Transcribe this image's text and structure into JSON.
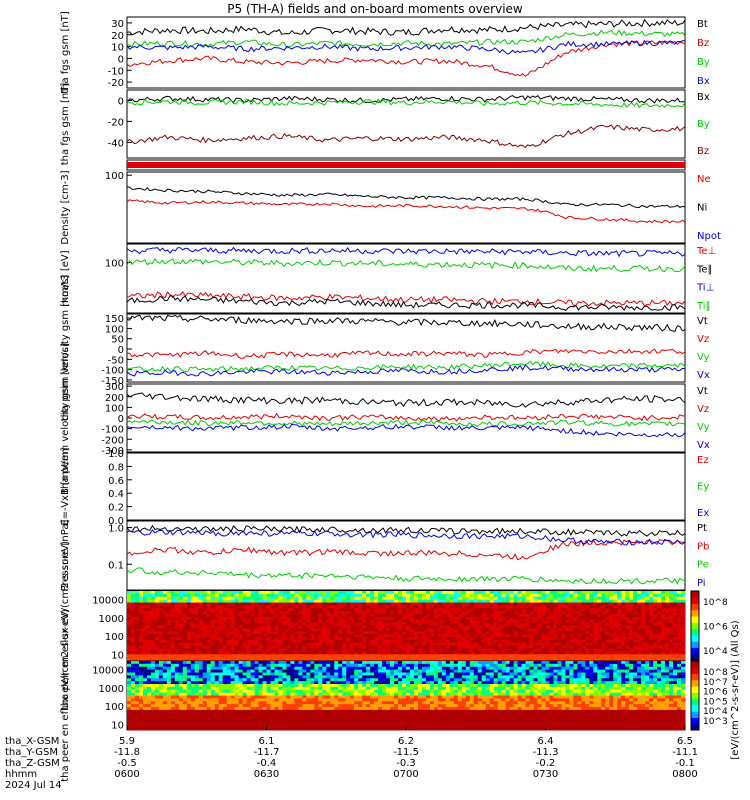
{
  "title": "P5 (TH-A) fields and on-board moments overview",
  "colors": {
    "black": "#000000",
    "red": "#e00000",
    "green": "#00cc00",
    "blue": "#0000e0",
    "darkred": "#800000"
  },
  "footer": {
    "row_labels": [
      "tha_X-GSM",
      "tha_Y-GSM",
      "tha_Z-GSM",
      "hhmm",
      "2024 Jul 14"
    ],
    "columns": [
      {
        "x": "5.9",
        "y": "-11.8",
        "z": "-0.5",
        "hhmm": "0600"
      },
      {
        "x": "6.1",
        "y": "-11.7",
        "z": "-0.4",
        "hhmm": "0630"
      },
      {
        "x": "6.2",
        "y": "-11.5",
        "z": "-0.3",
        "hhmm": "0700"
      },
      {
        "x": "6.4",
        "y": "-11.3",
        "z": "-0.2",
        "hhmm": "0730"
      },
      {
        "x": "6.5",
        "y": "-11.1",
        "z": "-0.1",
        "hhmm": "0800"
      }
    ]
  },
  "chart_data": [
    {
      "type": "line",
      "ylabel": "tha fgs gsm [nT]",
      "ylim": [
        -25,
        35
      ],
      "log": false,
      "ticks": [
        "30",
        "20",
        "10",
        "0",
        "-10",
        "-20"
      ],
      "series": [
        {
          "name": "Bt",
          "color": "#000000",
          "values": [
            22,
            24,
            23,
            25,
            21,
            24,
            23,
            22,
            25,
            24,
            26,
            28,
            29,
            30,
            30
          ]
        },
        {
          "name": "Bz",
          "color": "#e00000",
          "values": [
            -5,
            -2,
            0,
            -3,
            -4,
            -2,
            -1,
            -3,
            -2,
            -6,
            -15,
            5,
            12,
            13,
            14
          ]
        },
        {
          "name": "By",
          "color": "#00cc00",
          "values": [
            12,
            13,
            12,
            14,
            11,
            13,
            12,
            13,
            12,
            14,
            14,
            20,
            22,
            21,
            20
          ]
        },
        {
          "name": "Bx",
          "color": "#0000e0",
          "values": [
            10,
            9,
            10,
            8,
            9,
            10,
            8,
            9,
            10,
            8,
            4,
            12,
            12,
            13,
            13
          ]
        }
      ]
    },
    {
      "type": "line",
      "ylabel": "tha fgs gsm [nT]",
      "ylim": [
        -55,
        10
      ],
      "log": false,
      "ticks": [
        "0",
        "-20",
        "-40"
      ],
      "series": [
        {
          "name": "Bx",
          "color": "#000000",
          "values": [
            0,
            2,
            1,
            0,
            2,
            1,
            0,
            1,
            2,
            1,
            3,
            2,
            1,
            0,
            0
          ]
        },
        {
          "name": "By",
          "color": "#00cc00",
          "values": [
            -2,
            -1,
            -2,
            -1,
            -3,
            -2,
            -1,
            -2,
            -1,
            -3,
            -2,
            -3,
            -4,
            -5,
            -4
          ]
        },
        {
          "name": "Bz",
          "color": "#800000",
          "values": [
            -40,
            -35,
            -38,
            -36,
            -34,
            -38,
            -36,
            -37,
            -35,
            -38,
            -45,
            -32,
            -25,
            -28,
            -27
          ]
        }
      ]
    },
    {
      "type": "heatmap",
      "ylabel": "",
      "series": [
        {
          "name": "flag",
          "color": "#e00000",
          "values": [
            1
          ]
        }
      ]
    },
    {
      "type": "line",
      "ylabel": "Density [cm-3]",
      "ylim": [
        0.02,
        150
      ],
      "log": true,
      "ticks": [
        "100"
      ],
      "series": [
        {
          "name": "Ne",
          "color": "#e00000",
          "values": [
            4,
            3,
            3.5,
            3,
            2.5,
            2.8,
            2,
            2.2,
            2,
            1.6,
            1.5,
            0.5,
            0.4,
            0.3,
            0.3
          ]
        },
        {
          "name": "Ni",
          "color": "#000000",
          "values": [
            20,
            15,
            13,
            10,
            8,
            9,
            7,
            6,
            6,
            5,
            5,
            2.5,
            2.5,
            2,
            2
          ]
        },
        {
          "name": "Npot",
          "color": "#0000e0",
          "values": []
        }
      ]
    },
    {
      "type": "line",
      "ylabel": "moat3 [eV]",
      "ylim": [
        5,
        300
      ],
      "log": true,
      "ticks": [
        "100"
      ],
      "series": [
        {
          "name": "Te⊥",
          "color": "#e00000",
          "values": [
            13,
            15,
            14,
            13,
            12,
            13,
            12,
            11,
            11,
            10,
            10,
            9,
            9,
            9,
            9
          ]
        },
        {
          "name": "Te∥",
          "color": "#000000",
          "values": [
            10,
            12,
            11,
            10,
            9,
            10,
            9,
            8,
            8,
            8,
            8,
            7,
            7,
            7,
            7
          ]
        },
        {
          "name": "Ti⊥",
          "color": "#0000e0",
          "values": [
            200,
            210,
            205,
            200,
            200,
            205,
            200,
            195,
            195,
            190,
            190,
            175,
            170,
            170,
            170
          ]
        },
        {
          "name": "Ti∥",
          "color": "#00cc00",
          "values": [
            100,
            110,
            105,
            100,
            95,
            100,
            95,
            90,
            90,
            85,
            85,
            70,
            70,
            70,
            70
          ]
        }
      ]
    },
    {
      "type": "line",
      "ylabel": "tha peim velocity gsm [km/s]",
      "ylim": [
        -160,
        170
      ],
      "log": false,
      "ticks": [
        "150",
        "100",
        "50",
        "0",
        "-50",
        "-100",
        "-150"
      ],
      "series": [
        {
          "name": "Vt",
          "color": "#000000",
          "values": [
            150,
            148,
            145,
            140,
            135,
            138,
            135,
            130,
            128,
            125,
            120,
            110,
            108,
            105,
            100
          ]
        },
        {
          "name": "Vz",
          "color": "#e00000",
          "values": [
            -25,
            -30,
            -20,
            -35,
            -25,
            -30,
            -20,
            -25,
            -20,
            -30,
            -15,
            -10,
            -12,
            -10,
            -10
          ]
        },
        {
          "name": "Vy",
          "color": "#00cc00",
          "values": [
            -100,
            -95,
            -100,
            -95,
            -90,
            -95,
            -90,
            -85,
            -90,
            -80,
            -70,
            -80,
            -85,
            -80,
            -80
          ]
        },
        {
          "name": "Vx",
          "color": "#0000e0",
          "values": [
            -120,
            -115,
            -120,
            -110,
            -110,
            -115,
            -110,
            -105,
            -110,
            -100,
            -90,
            -95,
            -100,
            -100,
            -100
          ]
        }
      ]
    },
    {
      "type": "line",
      "ylabel": "tha peem velocity gsm [km/s]",
      "ylim": [
        -320,
        320
      ],
      "log": false,
      "ticks": [
        "300",
        "200",
        "100",
        "0",
        "-100",
        "-200",
        "-300"
      ],
      "series": [
        {
          "name": "Vt",
          "color": "#000000",
          "values": [
            220,
            200,
            180,
            170,
            160,
            170,
            150,
            140,
            150,
            140,
            130,
            150,
            170,
            180,
            170
          ]
        },
        {
          "name": "Vz",
          "color": "#e00000",
          "values": [
            20,
            10,
            0,
            10,
            20,
            0,
            10,
            0,
            -10,
            10,
            0,
            20,
            10,
            0,
            10
          ]
        },
        {
          "name": "Vy",
          "color": "#00cc00",
          "values": [
            -30,
            -40,
            -50,
            -40,
            -50,
            -60,
            -50,
            -40,
            -50,
            -60,
            -50,
            -40,
            -50,
            -60,
            -50
          ]
        },
        {
          "name": "Vx",
          "color": "#0000e0",
          "values": [
            -80,
            -90,
            -100,
            -90,
            -80,
            -100,
            -90,
            -80,
            -90,
            -100,
            -90,
            -120,
            -150,
            -160,
            -150
          ]
        }
      ]
    },
    {
      "type": "line",
      "ylabel": "E=-VxB [mV/m]",
      "ylim": [
        0,
        1
      ],
      "log": false,
      "ticks": [
        "1.0",
        "0.8",
        "0.6",
        "0.4",
        "0.2",
        "0.0"
      ],
      "series": [
        {
          "name": "Ez",
          "color": "#e00000",
          "values": []
        },
        {
          "name": "Ey",
          "color": "#00cc00",
          "values": []
        },
        {
          "name": "Ex",
          "color": "#0000e0",
          "values": []
        }
      ]
    },
    {
      "type": "line",
      "ylabel": "Pressure [nPa]",
      "ylim": [
        0.02,
        1.5
      ],
      "log": true,
      "ticks": [
        "1.0",
        "0.1"
      ],
      "series": [
        {
          "name": "Pt",
          "color": "#000000",
          "values": [
            0.9,
            0.95,
            0.9,
            0.92,
            0.88,
            0.9,
            0.85,
            0.85,
            0.8,
            0.8,
            0.8,
            0.75,
            0.7,
            0.7,
            0.7
          ]
        },
        {
          "name": "Pb",
          "color": "#e00000",
          "values": [
            0.2,
            0.25,
            0.2,
            0.25,
            0.2,
            0.22,
            0.2,
            0.2,
            0.2,
            0.18,
            0.15,
            0.35,
            0.4,
            0.4,
            0.4
          ]
        },
        {
          "name": "Pe",
          "color": "#00cc00",
          "values": [
            0.07,
            0.06,
            0.06,
            0.05,
            0.05,
            0.05,
            0.045,
            0.04,
            0.04,
            0.04,
            0.04,
            0.035,
            0.035,
            0.035,
            0.035
          ]
        },
        {
          "name": "Pi",
          "color": "#0000e0",
          "values": [
            0.7,
            0.72,
            0.7,
            0.7,
            0.68,
            0.68,
            0.65,
            0.62,
            0.6,
            0.58,
            0.58,
            0.45,
            0.4,
            0.4,
            0.4
          ]
        }
      ]
    },
    {
      "type": "heatmap",
      "ylabel": "tha peir en eflux eV/(cm2-s-sr-eV)",
      "ylim": [
        5,
        30000
      ],
      "log": true,
      "ticks": [
        "10000",
        "1000",
        "100",
        "10"
      ],
      "values": [],
      "colorbar_label": "[eV/(cm^2-s-sr-eV)] (All Qs)",
      "colorbar_ticks": [
        "10^8",
        "10^6",
        "10^4"
      ]
    },
    {
      "type": "heatmap",
      "ylabel": "tha peer en eflux eV/(cm2-s-sr-eV)",
      "ylim": [
        5,
        30000
      ],
      "log": true,
      "ticks": [
        "10000",
        "1000",
        "100",
        "10"
      ],
      "values": [],
      "colorbar_label": "[eV/(cm^2-s-sr-eV)] (All Qs)",
      "colorbar_ticks": [
        "10^8",
        "10^7",
        "10^6",
        "10^5",
        "10^4",
        "10^3"
      ]
    }
  ]
}
